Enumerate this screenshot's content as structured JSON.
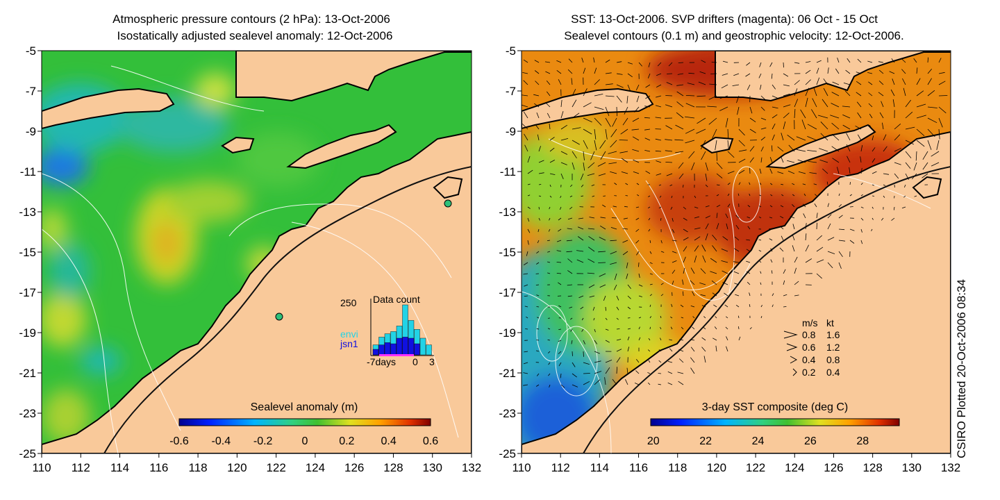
{
  "left_panel": {
    "title_line1": "Atmospheric pressure contours (2 hPa): 13-Oct-2006",
    "title_line2": "Isostatically adjusted sealevel anomaly: 12-Oct-2006",
    "colorbar_label": "Sealevel anomaly (m)",
    "colorbar_ticks": [
      "-0.6",
      "-0.4",
      "-0.2",
      "0",
      "0.2",
      "0.4",
      "0.6"
    ],
    "inset": {
      "title": "Data count",
      "ymax_label": "250",
      "series_label_1": "envi",
      "series_label_2": "jsn1",
      "series_color_1": "#22d3e6",
      "series_color_2": "#1010e0",
      "xlabels": [
        "-7days",
        "0",
        "3"
      ],
      "bar_heights_envi": [
        0.18,
        0.32,
        0.38,
        0.42,
        0.52,
        0.9,
        0.62,
        0.46,
        0.3,
        0.18
      ],
      "bar_heights_jsn1": [
        0.1,
        0.18,
        0.22,
        0.2,
        0.3,
        0.32,
        0.3,
        0.2,
        0.0,
        0.0
      ]
    }
  },
  "right_panel": {
    "title_line1": "SST: 13-Oct-2006. SVP drifters (magenta): 06 Oct - 15 Oct",
    "title_line2": "Sealevel contours (0.1 m) and geostrophic velocity: 12-Oct-2006.",
    "colorbar_label": "3-day SST composite (deg C)",
    "colorbar_ticks": [
      "20",
      "22",
      "24",
      "26",
      "28"
    ],
    "legend_header": [
      "m/s",
      "kt"
    ],
    "legend_rows": [
      [
        "0.8",
        "1.6"
      ],
      [
        "0.6",
        "1.2"
      ],
      [
        "0.4",
        "0.8"
      ],
      [
        "0.2",
        "0.4"
      ]
    ]
  },
  "y_ticks": [
    "-5",
    "-7",
    "-9",
    "-11",
    "-13",
    "-15",
    "-17",
    "-19",
    "-21",
    "-23",
    "-25"
  ],
  "x_ticks": [
    "110",
    "112",
    "114",
    "116",
    "118",
    "120",
    "122",
    "124",
    "126",
    "128",
    "130",
    "132"
  ],
  "credit": "CSIRO Plotted 20-Oct-2006 08:34",
  "colors": {
    "land": "#f9c99a",
    "sla_base": "#33bf3a",
    "sst_base": "#ea8a10"
  }
}
